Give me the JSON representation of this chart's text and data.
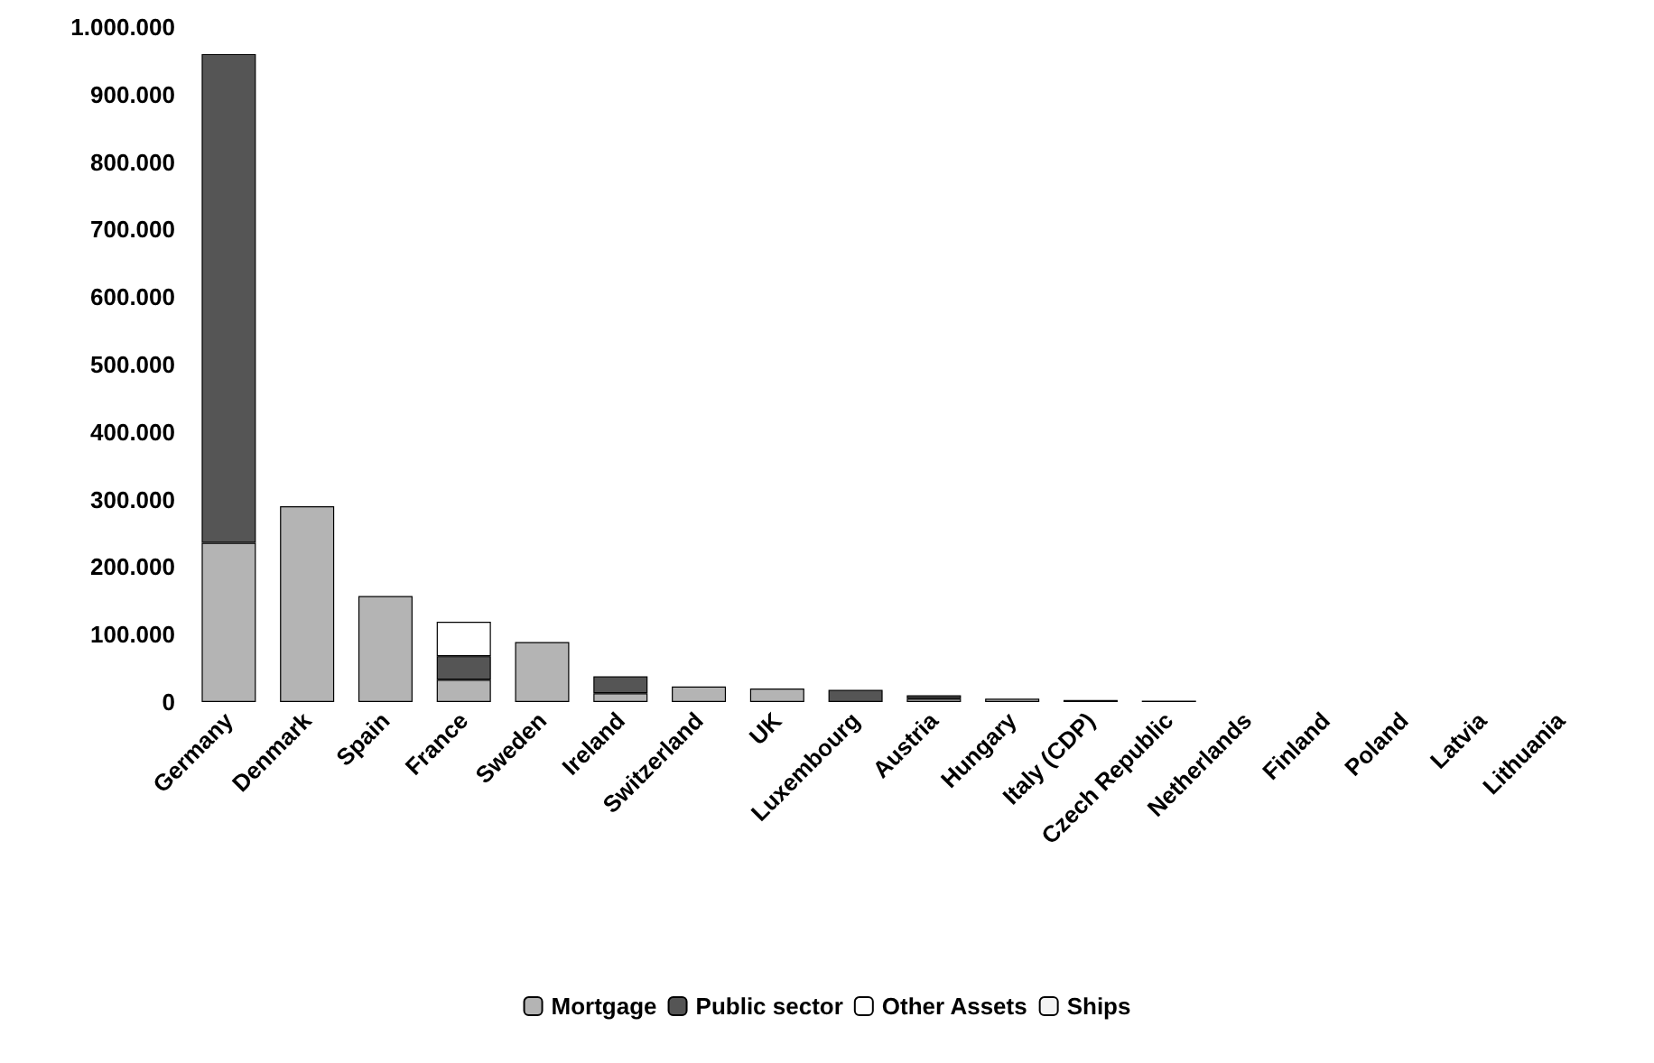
{
  "chart_data": {
    "type": "bar",
    "stacked": true,
    "categories": [
      "Germany",
      "Denmark",
      "Spain",
      "France",
      "Sweden",
      "Ireland",
      "Switzerland",
      "UK",
      "Luxembourg",
      "Austria",
      "Hungary",
      "Italy (CDP)",
      "Czech Republic",
      "Netherlands",
      "Finland",
      "Poland",
      "Latvia",
      "Lithuania"
    ],
    "series": [
      {
        "name": "Mortgage",
        "color": "#b4b4b4",
        "values": [
          236000,
          290000,
          157000,
          33000,
          89000,
          13000,
          23000,
          20000,
          null,
          5000,
          5000,
          3000,
          2000,
          null,
          null,
          null,
          null,
          null
        ]
      },
      {
        "name": "Public sector",
        "color": "#555555",
        "values": [
          724000,
          null,
          null,
          35000,
          null,
          25000,
          null,
          null,
          18000,
          5000,
          null,
          null,
          null,
          null,
          null,
          null,
          null,
          null
        ]
      },
      {
        "name": "Other Assets",
        "color": "#ffffff",
        "values": [
          null,
          null,
          null,
          51000,
          null,
          null,
          null,
          null,
          null,
          null,
          null,
          null,
          null,
          null,
          null,
          null,
          null,
          null
        ]
      },
      {
        "name": "Ships",
        "color": "#f4f4f4",
        "values": [
          null,
          null,
          null,
          null,
          null,
          null,
          null,
          null,
          null,
          null,
          null,
          null,
          null,
          null,
          null,
          null,
          null,
          null
        ]
      }
    ],
    "ylim": [
      0,
      1000000
    ],
    "yticks": [
      {
        "value": 0,
        "label": "0"
      },
      {
        "value": 100000,
        "label": "100.000"
      },
      {
        "value": 200000,
        "label": "200.000"
      },
      {
        "value": 300000,
        "label": "300.000"
      },
      {
        "value": 400000,
        "label": "400.000"
      },
      {
        "value": 500000,
        "label": "500.000"
      },
      {
        "value": 600000,
        "label": "600.000"
      },
      {
        "value": 700000,
        "label": "700.000"
      },
      {
        "value": 800000,
        "label": "800.000"
      },
      {
        "value": 900000,
        "label": "900.000"
      },
      {
        "value": 1000000,
        "label": "1.000.000"
      }
    ],
    "grid": false,
    "legend": "bottom"
  }
}
